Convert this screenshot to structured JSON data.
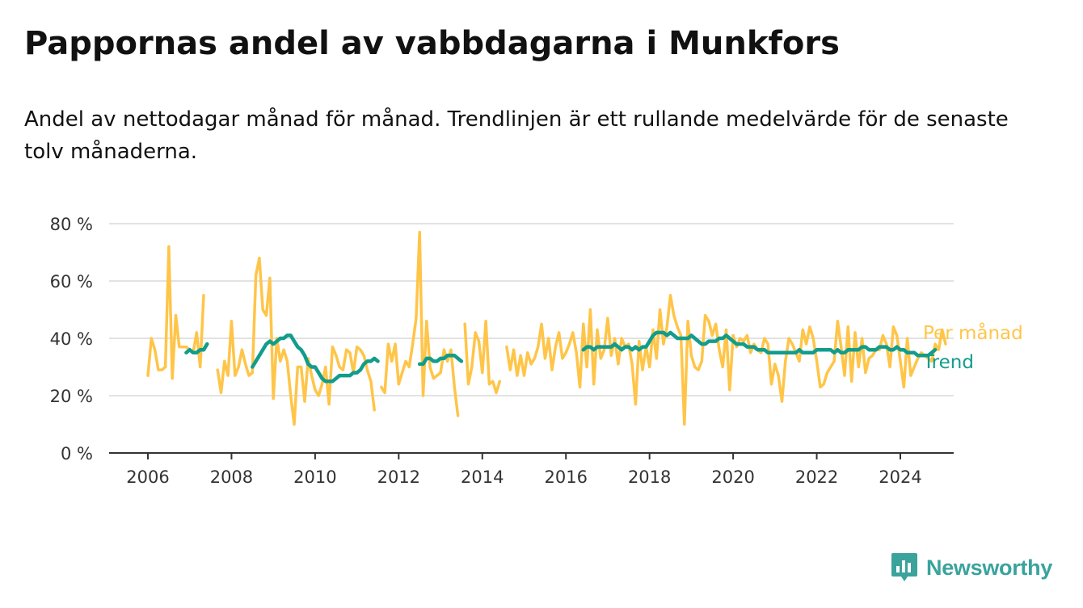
{
  "title": "Pappornas andel av vabbdagarna i Munkfors",
  "subtitle": "Andel av nettodagar månad för månad. Trendlinjen är ett rullande medelvärde för de senaste tolv månaderna.",
  "brand": {
    "name": "Newsworthy",
    "icon": "newsworthy-logo-icon"
  },
  "colors": {
    "monthly": "#FFC549",
    "trend": "#129C8C",
    "grid": "#d9d9d9",
    "axis": "#333333",
    "text": "#333333"
  },
  "chart_data": {
    "type": "line",
    "xlim": [
      2006,
      2025.2
    ],
    "ylim": [
      0,
      80
    ],
    "x_ticks": [
      2006,
      2008,
      2010,
      2012,
      2014,
      2016,
      2018,
      2020,
      2022,
      2024
    ],
    "x_tick_labels": [
      "2006",
      "2008",
      "2010",
      "2012",
      "2014",
      "2016",
      "2018",
      "2020",
      "2022",
      "2024"
    ],
    "y_ticks": [
      0,
      20,
      40,
      60,
      80
    ],
    "y_tick_labels": [
      "0 %",
      "20 %",
      "40 %",
      "60 %",
      "80 %"
    ],
    "grid": true,
    "series": [
      {
        "name": "Per månad",
        "color": "#FFC549",
        "segments": [
          {
            "start": "2006-01",
            "values": [
              27,
              40,
              36,
              29,
              29,
              30,
              72,
              26,
              48,
              37,
              37,
              37,
              36,
              35,
              42,
              30,
              55
            ]
          },
          {
            "start": "2007-09",
            "values": [
              29,
              21,
              32,
              27,
              46,
              27,
              30,
              36,
              31,
              27,
              28,
              62,
              68,
              50,
              48,
              61,
              19,
              40,
              32,
              36,
              32,
              20,
              10,
              30,
              30,
              18,
              33,
              27,
              22,
              20,
              24,
              30,
              17,
              37,
              34,
              30,
              29,
              36,
              35,
              28,
              37,
              36,
              34,
              29,
              25,
              15
            ]
          },
          {
            "start": "2011-08",
            "values": [
              23,
              21,
              38,
              32,
              38,
              24,
              28,
              32,
              30,
              38,
              47,
              77,
              20,
              46,
              30,
              26,
              27,
              28,
              36,
              32,
              36,
              23,
              13
            ]
          },
          {
            "start": "2013-08",
            "values": [
              45,
              24,
              30,
              42,
              39,
              28,
              46,
              24,
              25,
              21,
              25
            ]
          },
          {
            "start": "2014-08",
            "values": [
              37,
              29,
              36,
              27,
              34,
              27,
              35,
              31,
              33,
              37,
              45,
              33,
              40,
              29,
              37,
              42,
              33,
              35,
              38,
              42,
              35,
              23,
              45,
              30,
              50,
              24,
              43,
              33,
              36,
              47,
              34,
              40,
              31,
              40,
              37,
              38,
              31,
              17,
              39,
              29,
              37,
              30,
              43,
              33,
              50,
              38,
              44,
              55,
              48,
              44,
              41,
              10,
              46,
              34,
              30,
              29,
              32,
              48,
              46,
              41,
              45,
              36,
              30,
              43,
              22,
              41,
              37,
              40,
              39,
              41,
              35,
              38,
              36,
              35,
              40,
              38,
              24,
              31,
              27,
              18,
              32,
              40,
              38,
              35,
              32,
              43,
              38,
              44,
              40,
              32,
              23,
              24,
              28,
              30,
              32,
              46,
              37,
              27,
              44,
              25,
              42,
              30,
              40,
              28,
              33,
              34,
              36,
              36,
              41,
              38,
              30,
              44,
              41,
              32,
              23,
              40,
              27,
              30,
              33,
              35,
              34,
              33,
              32,
              38,
              36,
              43,
              38
            ]
          }
        ]
      },
      {
        "name": "Trend",
        "color": "#129C8C",
        "segments": [
          {
            "start": "2006-12",
            "values": [
              35,
              36,
              35,
              35,
              36,
              36,
              38
            ]
          },
          {
            "start": "2008-07",
            "values": [
              30,
              32,
              34,
              36,
              38,
              39,
              38,
              39,
              40,
              40,
              41,
              41,
              39,
              37,
              36,
              34,
              31,
              30,
              30,
              28,
              26,
              25,
              25,
              25,
              26,
              27,
              27,
              27,
              27,
              28,
              28,
              29,
              31,
              32,
              32,
              33,
              32
            ]
          },
          {
            "start": "2012-07",
            "values": [
              31,
              31,
              33,
              33,
              32,
              32,
              33,
              33,
              34,
              34,
              34,
              33,
              32
            ]
          },
          {
            "start": "2016-06",
            "values": [
              36,
              37,
              37,
              36,
              37,
              37,
              37,
              37,
              37,
              38,
              37,
              36,
              37,
              37,
              36,
              37,
              36,
              37,
              37,
              39,
              41,
              42,
              42,
              42,
              41,
              42,
              41,
              40,
              40,
              40,
              40,
              41,
              40,
              39,
              38,
              38,
              39,
              39,
              39,
              40,
              40,
              41,
              40,
              39,
              38,
              38,
              38,
              37,
              37,
              37,
              36,
              36,
              36,
              35,
              35,
              35,
              35,
              35,
              35,
              35,
              35,
              35,
              36,
              35,
              35,
              35,
              35,
              36,
              36,
              36,
              36,
              36,
              35,
              36,
              35,
              35,
              36,
              36,
              36,
              36,
              37,
              37,
              36,
              36,
              36,
              37,
              37,
              37,
              36,
              36,
              37,
              36,
              36,
              35,
              35,
              35,
              34,
              34,
              34,
              34,
              35,
              36
            ]
          }
        ]
      }
    ],
    "legend": {
      "placement": "right-end",
      "entries": [
        "Per månad",
        "Trend"
      ]
    }
  }
}
